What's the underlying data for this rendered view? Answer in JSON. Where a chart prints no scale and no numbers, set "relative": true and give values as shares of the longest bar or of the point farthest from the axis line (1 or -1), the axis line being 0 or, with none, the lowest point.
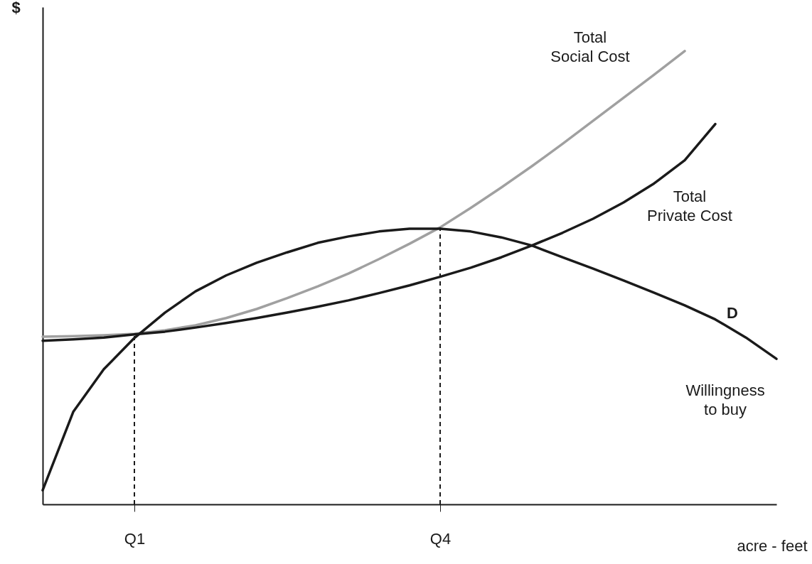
{
  "chart_data": {
    "type": "line",
    "relative": true,
    "tick_labels": "x",
    "xlabel": "acre - feet",
    "ylabel": "$",
    "categories": [
      null,
      null,
      null,
      "Q1",
      null,
      null,
      null,
      null,
      null,
      null,
      null,
      null,
      null,
      "Q4",
      null,
      null,
      null,
      null,
      null,
      null,
      null,
      null,
      null,
      null,
      null
    ],
    "series": [
      {
        "name": "Total\nSocial Cost",
        "color": "#a0a0a0",
        "values": [
          0.37,
          0.371,
          0.373,
          0.376,
          0.384,
          0.395,
          0.411,
          0.431,
          0.455,
          0.481,
          0.509,
          0.541,
          0.575,
          0.611,
          0.654,
          0.699,
          0.746,
          0.795,
          0.846,
          0.897,
          0.948,
          1.0,
          null,
          null,
          null
        ]
      },
      {
        "name": "Total\nPrivate Cost",
        "color": "#1a1a1a",
        "values": [
          0.361,
          0.364,
          0.368,
          0.375,
          0.381,
          0.39,
          0.4,
          0.411,
          0.423,
          0.436,
          0.45,
          0.466,
          0.483,
          0.502,
          0.522,
          0.545,
          0.571,
          0.599,
          0.63,
          0.666,
          0.708,
          0.759,
          0.839,
          null,
          null
        ]
      },
      {
        "name": "D",
        "color": "#1a1a1a",
        "values": [
          0.031,
          0.204,
          0.298,
          0.367,
          0.423,
          0.47,
          0.505,
          0.533,
          0.556,
          0.577,
          0.591,
          0.602,
          0.608,
          0.608,
          0.602,
          0.589,
          0.571,
          0.545,
          0.52,
          0.494,
          0.467,
          0.439,
          0.408,
          0.368,
          0.321
        ]
      }
    ],
    "annotations": [
      "Willingness\nto buy"
    ],
    "ref_lines": [
      {
        "axis": "x",
        "value": "Q1",
        "line_style": "dashed",
        "color": "#1a1a1a"
      },
      {
        "axis": "x",
        "value": "Q4",
        "line_style": "dashed",
        "color": "#1a1a1a"
      }
    ]
  }
}
